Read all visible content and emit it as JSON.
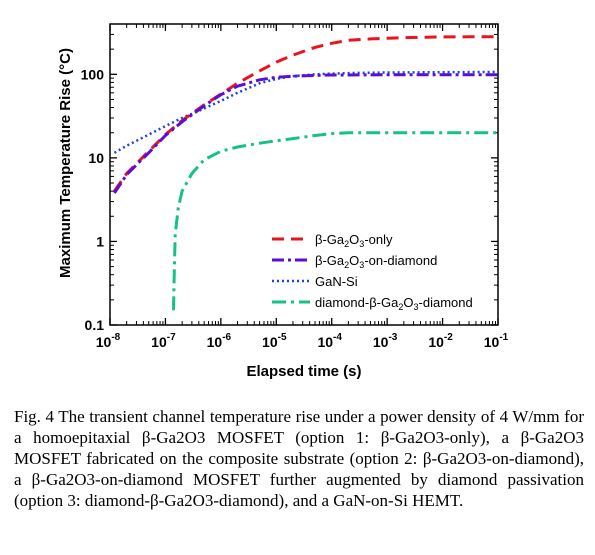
{
  "chart_data": {
    "type": "line",
    "xlabel": "Elapsed time (s)",
    "ylabel": "Maximum Temperature Rise (°C)",
    "xscale": "log",
    "yscale": "log",
    "xlim": [
      1e-08,
      0.1
    ],
    "ylim": [
      0.1,
      400
    ],
    "x_ticks": [
      {
        "value": 1e-08,
        "base": "10",
        "exp": "-8"
      },
      {
        "value": 1e-07,
        "base": "10",
        "exp": "-7"
      },
      {
        "value": 1e-06,
        "base": "10",
        "exp": "-6"
      },
      {
        "value": 1e-05,
        "base": "10",
        "exp": "-5"
      },
      {
        "value": 0.0001,
        "base": "10",
        "exp": "-4"
      },
      {
        "value": 0.001,
        "base": "10",
        "exp": "-3"
      },
      {
        "value": 0.01,
        "base": "10",
        "exp": "-2"
      },
      {
        "value": 0.1,
        "base": "10",
        "exp": "-1"
      }
    ],
    "y_ticks": [
      {
        "value": 0.1,
        "label": "0.1"
      },
      {
        "value": 1,
        "label": "1"
      },
      {
        "value": 10,
        "label": "10"
      },
      {
        "value": 100,
        "label": "100"
      }
    ],
    "grid": false,
    "legend_position": "bottom-right",
    "series": [
      {
        "key": "ga2o3_only",
        "name_parts": [
          [
            "β-Ga",
            ""
          ],
          [
            "2",
            "sub"
          ],
          [
            "O",
            ""
          ],
          [
            "3",
            "sub"
          ],
          [
            "-only",
            ""
          ]
        ],
        "color": "#e8141e",
        "dash": "12,7",
        "width": 3,
        "x": [
          1.2e-08,
          2e-08,
          5e-08,
          1e-07,
          2e-07,
          5e-07,
          1e-06,
          2e-06,
          5e-06,
          1e-05,
          2e-05,
          5e-05,
          0.0001,
          0.0002,
          0.0005,
          0.001,
          0.002,
          0.005,
          0.01,
          0.03,
          0.1
        ],
        "y": [
          4,
          6.5,
          12,
          19,
          28,
          43,
          58,
          78,
          110,
          140,
          170,
          210,
          235,
          255,
          265,
          270,
          275,
          278,
          280,
          281,
          282
        ]
      },
      {
        "key": "ga2o3_on_diamond",
        "name_parts": [
          [
            "β-Ga",
            ""
          ],
          [
            "2",
            "sub"
          ],
          [
            "O",
            ""
          ],
          [
            "3",
            "sub"
          ],
          [
            "-on-diamond",
            ""
          ]
        ],
        "color": "#5a0fd6",
        "dash": "12,4,3,4",
        "width": 3,
        "x": [
          1.2e-08,
          2e-08,
          5e-08,
          1e-07,
          2e-07,
          5e-07,
          1e-06,
          2e-06,
          5e-06,
          1e-05,
          2e-05,
          5e-05,
          0.0001,
          0.0003,
          0.001,
          0.01,
          0.1
        ],
        "y": [
          3.8,
          6.3,
          11.5,
          18.5,
          27,
          42,
          57,
          72,
          86,
          92,
          95,
          97,
          98,
          98.5,
          99,
          99,
          99
        ]
      },
      {
        "key": "gan_si",
        "name_parts": [
          [
            "GaN-Si",
            ""
          ]
        ],
        "color": "#1f3fe0",
        "dash": "2,3",
        "width": 2.5,
        "x": [
          1.2e-08,
          2e-08,
          5e-08,
          1e-07,
          2e-07,
          5e-07,
          1e-06,
          2e-06,
          5e-06,
          1e-05,
          2e-05,
          5e-05,
          0.0001,
          0.0003,
          0.001,
          0.01,
          0.1
        ],
        "y": [
          11.5,
          14,
          19,
          24,
          30,
          39,
          48,
          60,
          78,
          88,
          95,
          100,
          102,
          104,
          105,
          106,
          107
        ]
      },
      {
        "key": "diamond_ga2o3_diamond",
        "name_parts": [
          [
            "diamond-β-Ga",
            ""
          ],
          [
            "2",
            "sub"
          ],
          [
            "O",
            ""
          ],
          [
            "3",
            "sub"
          ],
          [
            "-diamond",
            ""
          ]
        ],
        "color": "#16c08a",
        "dash": "14,5,3,5",
        "width": 3,
        "x": [
          1.4e-07,
          1.45e-07,
          1.5e-07,
          1.7e-07,
          2e-07,
          3e-07,
          5e-07,
          1e-06,
          2e-06,
          5e-06,
          1e-05,
          2e-05,
          5e-05,
          0.0001,
          0.0002,
          0.001,
          0.01,
          0.1
        ],
        "y": [
          0.15,
          0.5,
          1.2,
          2.5,
          4,
          6.5,
          9.5,
          12,
          13.5,
          15,
          16,
          17,
          18.5,
          19.5,
          20,
          20,
          20,
          20
        ]
      }
    ]
  },
  "caption": "Fig. 4 The transient channel temperature rise under a power density of 4 W/mm for a homoepitaxial β-Ga2O3 MOSFET (option 1: β-Ga2O3-only), a β-Ga2O3 MOSFET fabricated on the composite substrate (option 2: β-Ga2O3-on-diamond), a β-Ga2O3-on-diamond MOSFET further augmented by diamond passivation (option 3: diamond-β-Ga2O3-diamond), and a GaN-on-Si HEMT."
}
